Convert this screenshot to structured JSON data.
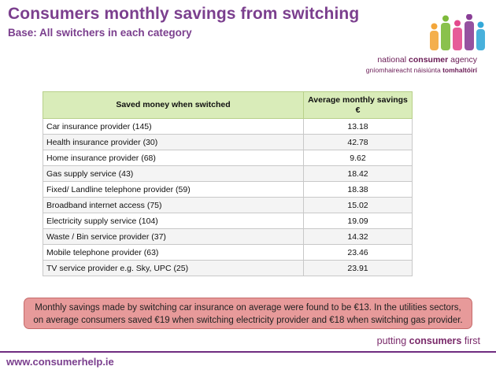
{
  "header": {
    "title": "Consumers monthly savings from switching",
    "subtitle": "Base: All switchers in each category"
  },
  "logo": {
    "line1_prefix": "national",
    "line1_bold": "consumer",
    "line1_suffix": "agency",
    "line2_prefix": "gníomhaireacht náisiúnta",
    "line2_bold": "tomhaltóirí",
    "figure_colors": [
      "#f3a63a",
      "#7dba3a",
      "#e34a8d",
      "#8a3f96",
      "#34a8d8"
    ]
  },
  "table": {
    "col1_header": "Saved money when switched",
    "col2_header_line1": "Average monthly savings",
    "col2_header_line2": "€",
    "rows": [
      {
        "label": "Car insurance provider (145)",
        "value": "13.18"
      },
      {
        "label": "Health insurance provider (30)",
        "value": "42.78"
      },
      {
        "label": "Home insurance provider (68)",
        "value": "9.62"
      },
      {
        "label": "Gas supply service (43)",
        "value": "18.42"
      },
      {
        "label": "Fixed/ Landline telephone provider (59)",
        "value": "18.38"
      },
      {
        "label": "Broadband internet access (75)",
        "value": "15.02"
      },
      {
        "label": "Electricity supply service (104)",
        "value": "19.09"
      },
      {
        "label": "Waste / Bin service provider (37)",
        "value": "14.32"
      },
      {
        "label": "Mobile telephone provider (63)",
        "value": "23.46"
      },
      {
        "label": "TV service provider e.g. Sky, UPC (25)",
        "value": "23.91"
      }
    ]
  },
  "callout": {
    "text": "Monthly savings made by switching car insurance on average were found to be €13. In the utilities sectors, on average consumers saved €19 when switching electricity provider and €18 when switching gas provider."
  },
  "footer": {
    "tagline_prefix": "putting",
    "tagline_bold": "consumers",
    "tagline_suffix": "first",
    "url": "www.consumerhelp.ie"
  }
}
